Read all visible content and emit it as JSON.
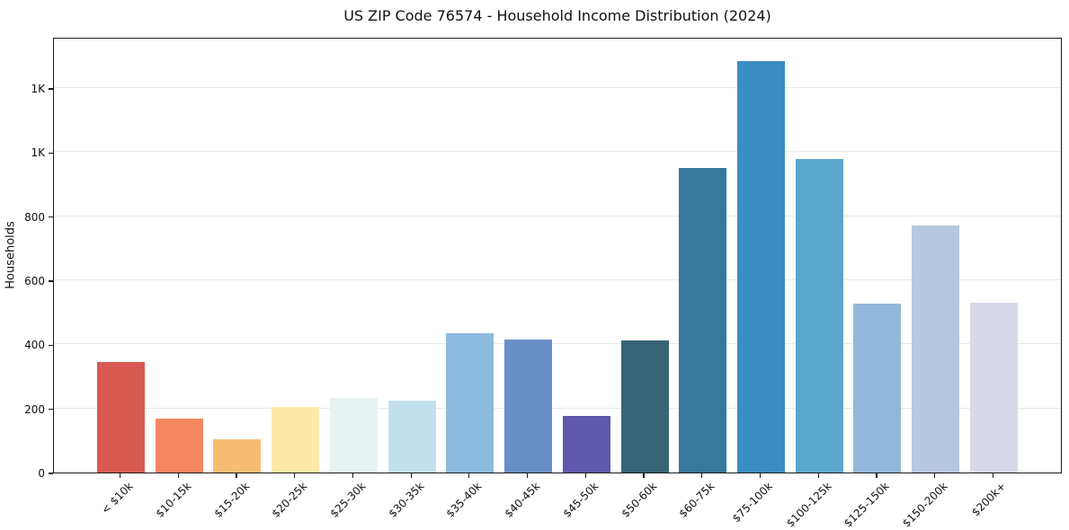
{
  "page": {
    "title": "US ZIP Code 76574 - Household Income Distribution (2024)"
  },
  "chart_data": {
    "type": "bar",
    "title": "US ZIP Code 76574 - Household Income Distribution (2024)",
    "xlabel": "",
    "ylabel": "Households",
    "categories": [
      "< $10k",
      "$10-15k",
      "$15-20k",
      "$20-25k",
      "$25-30k",
      "$30-35k",
      "$35-40k",
      "$40-45k",
      "$45-50k",
      "$50-60k",
      "$60-75k",
      "$75-100k",
      "$100-125k",
      "$125-150k",
      "$150-200k",
      "$200k+"
    ],
    "values": [
      345,
      168,
      103,
      205,
      234,
      224,
      435,
      416,
      177,
      412,
      950,
      1285,
      980,
      527,
      770,
      530
    ],
    "bar_colors": [
      "#d75b52",
      "#f4875f",
      "#f9bd72",
      "#fde9a8",
      "#e7f2f3",
      "#c2e0ee",
      "#8dbbde",
      "#6a8ec6",
      "#6058ab",
      "#386478",
      "#38789e",
      "#3a8ec1",
      "#5ba7cb",
      "#92b8d9",
      "#b6c7e0",
      "#d8d9e8"
    ],
    "yticks": [
      {
        "value": 0,
        "label": "0"
      },
      {
        "value": 200,
        "label": "200"
      },
      {
        "value": 400,
        "label": "400"
      },
      {
        "value": 600,
        "label": "600"
      },
      {
        "value": 800,
        "label": "800"
      },
      {
        "value": 1000,
        "label": "1K"
      },
      {
        "value": 1200,
        "label": "1K"
      }
    ],
    "ylim": [
      0,
      1360
    ],
    "grid": true,
    "legend_position": "none",
    "grid_color": "#e9e9e9",
    "spine_color": "#1a1a1a",
    "background": "#ffffff"
  }
}
